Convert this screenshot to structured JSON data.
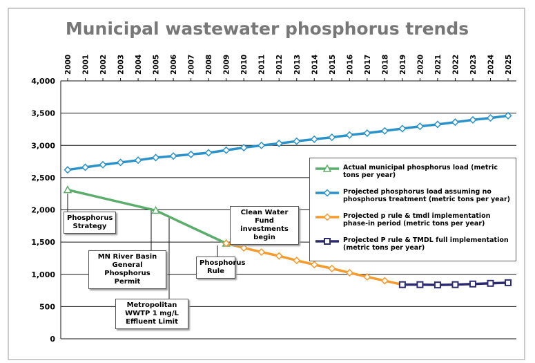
{
  "chart_data": {
    "type": "line",
    "title": "Municipal wastewater phosphorus trends",
    "xlim": [
      2000,
      2025
    ],
    "xticks": [
      2000,
      2001,
      2002,
      2003,
      2004,
      2005,
      2006,
      2007,
      2008,
      2009,
      2010,
      2011,
      2012,
      2013,
      2014,
      2015,
      2016,
      2017,
      2018,
      2019,
      2020,
      2021,
      2022,
      2023,
      2024,
      2025
    ],
    "ylim": [
      0,
      4000
    ],
    "yticks": [
      0,
      500,
      {
        "value": 1000,
        "label": "1,000"
      },
      {
        "value": 1500,
        "label": "1,500"
      },
      {
        "value": 2000,
        "label": "2,000"
      },
      {
        "value": 2500,
        "label": "2,500"
      },
      {
        "value": 3000,
        "label": "3,000"
      },
      {
        "value": 3500,
        "label": "3,500"
      },
      {
        "value": 4000,
        "label": "4,000"
      }
    ],
    "grid": true,
    "legend": "right",
    "series": [
      {
        "name": "Actual municipal phosphorus load (metric tons per year)",
        "color": "#5aad6b",
        "marker": "triangle",
        "x": [
          2000,
          2005,
          2009
        ],
        "values": [
          2310,
          1990,
          1480
        ]
      },
      {
        "name": "Projected phosphorus load assuming no phosphorus treatment (metric tons per year)",
        "color": "#2a92c8",
        "marker": "diamond",
        "x": [
          2000,
          2001,
          2002,
          2003,
          2004,
          2005,
          2006,
          2007,
          2008,
          2009,
          2010,
          2011,
          2012,
          2013,
          2014,
          2015,
          2016,
          2017,
          2018,
          2019,
          2020,
          2021,
          2022,
          2023,
          2024,
          2025
        ],
        "values": [
          2620,
          2660,
          2700,
          2735,
          2770,
          2810,
          2835,
          2860,
          2885,
          2925,
          2965,
          3000,
          3030,
          3065,
          3095,
          3125,
          3160,
          3190,
          3225,
          3260,
          3295,
          3325,
          3360,
          3395,
          3425,
          3460
        ]
      },
      {
        "name": "Projected p rule & tmdl implementation phase-in period (metric tons per year)",
        "color": "#f59a2c",
        "marker": "diamond",
        "x": [
          2009,
          2010,
          2011,
          2012,
          2013,
          2014,
          2015,
          2016,
          2017,
          2018,
          2019
        ],
        "values": [
          1480,
          1410,
          1345,
          1285,
          1215,
          1150,
          1090,
          1025,
          960,
          900,
          840
        ]
      },
      {
        "name": "Projected P rule & TMDL full implementation (metric tons per year)",
        "color": "#2b2a6e",
        "marker": "square",
        "x": [
          2019,
          2020,
          2021,
          2022,
          2023,
          2024,
          2025
        ],
        "values": [
          840,
          840,
          835,
          840,
          850,
          860,
          870
        ]
      }
    ],
    "annotations": [
      {
        "text": "Phosphorus Strategy"
      },
      {
        "text": "MN River Basin General Phosphorus Permit"
      },
      {
        "text": "Metropolitan WWTP 1 mg/L Effluent Limit"
      },
      {
        "text": "Phosphorus Rule"
      },
      {
        "text": "Clean Water Fund investments begin"
      }
    ]
  }
}
